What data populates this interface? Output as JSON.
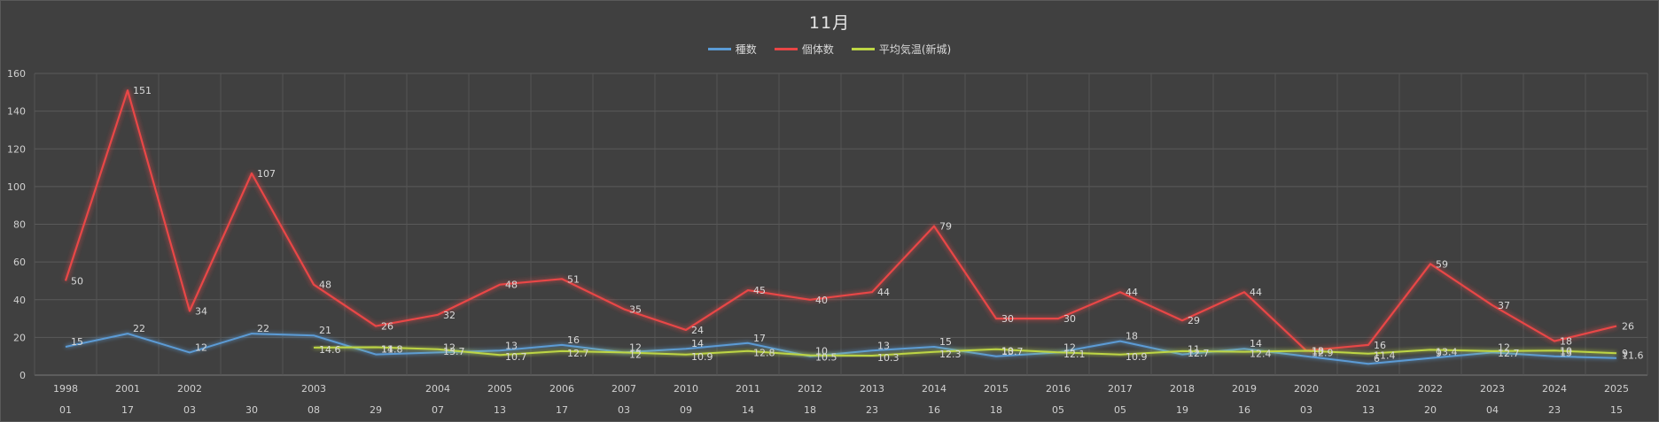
{
  "chart_data": {
    "type": "line",
    "title": "11月",
    "legend_position": "top",
    "grid": true,
    "ylim": [
      0,
      160
    ],
    "yticks": [
      "0",
      "20",
      "40",
      "60",
      "80",
      "100",
      "120",
      "140",
      "160"
    ],
    "categories_year": [
      "1998",
      "2001",
      "2002",
      "",
      "2003",
      "",
      "2004",
      "2005",
      "2006",
      "2007",
      "2010",
      "2011",
      "2012",
      "2013",
      "2014",
      "2015",
      "2016",
      "2017",
      "2018",
      "2019",
      "2020",
      "2021",
      "2022",
      "2023",
      "2024",
      "2025"
    ],
    "categories_day": [
      "01",
      "17",
      "03",
      "30",
      "08",
      "29",
      "07",
      "13",
      "17",
      "03",
      "09",
      "14",
      "18",
      "23",
      "16",
      "18",
      "05",
      "05",
      "19",
      "16",
      "03",
      "13",
      "20",
      "04",
      "23",
      "15"
    ],
    "series": [
      {
        "name": "種数",
        "color": "#5b9bd5",
        "values": [
          15,
          22,
          12,
          22,
          21,
          11,
          12,
          13,
          16,
          12,
          14,
          17,
          10,
          13,
          15,
          10,
          12,
          18,
          11,
          14,
          10,
          6,
          9,
          12,
          10,
          9
        ],
        "labels": [
          "15",
          "22",
          "12",
          "22",
          "21",
          "11",
          "12",
          "13",
          "16",
          "12",
          "14",
          "17",
          "10",
          "13",
          "15",
          "10",
          "12",
          "18",
          "11",
          "14",
          "10",
          "6",
          "9",
          "12",
          "10",
          "9"
        ]
      },
      {
        "name": "個体数",
        "color": "#e84646",
        "values": [
          50,
          151,
          34,
          107,
          48,
          26,
          32,
          48,
          51,
          35,
          24,
          45,
          40,
          44,
          79,
          30,
          30,
          44,
          29,
          44,
          13,
          16,
          59,
          37,
          18,
          26
        ],
        "labels": [
          "50",
          "151",
          "34",
          "107",
          "48",
          "26",
          "32",
          "48",
          "51",
          "35",
          "24",
          "45",
          "40",
          "44",
          "79",
          "30",
          "30",
          "44",
          "29",
          "44",
          "13",
          "16",
          "59",
          "37",
          "18",
          "26"
        ]
      },
      {
        "name": "平均気温(新城)",
        "color": "#bdd545",
        "values": [
          null,
          null,
          null,
          null,
          14.6,
          14.8,
          13.7,
          10.7,
          12.7,
          12,
          10.9,
          12.8,
          10.5,
          10.3,
          12.3,
          13.7,
          12.1,
          10.9,
          12.7,
          12.4,
          12.9,
          11.4,
          13.4,
          12.7,
          13,
          11.6
        ],
        "labels": [
          "",
          "",
          "",
          "",
          "14.6",
          "14.8",
          "13.7",
          "10.7",
          "12.7",
          "12",
          "10.9",
          "12.8",
          "10.5",
          "10.3",
          "12.3",
          "13.7",
          "12.1",
          "10.9",
          "12.7",
          "12.4",
          "12.9",
          "11.4",
          "13.4",
          "12.7",
          "13",
          "11.6"
        ]
      }
    ]
  }
}
